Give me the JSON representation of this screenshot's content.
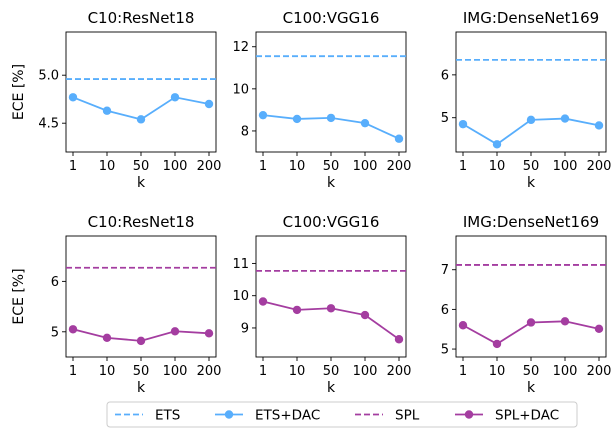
{
  "chart_data": [
    {
      "type": "line",
      "title": "C10:ResNet18",
      "xlabel": "k",
      "ylabel": "ECE [%]",
      "categories": [
        "1",
        "10",
        "50",
        "100",
        "200"
      ],
      "ylim": [
        4.2,
        5.45
      ],
      "yticks": [
        4.5,
        5.0
      ],
      "yticklabels": [
        "4.5",
        "5.0"
      ],
      "baseline": {
        "name": "ETS",
        "value": 4.96,
        "color": "#58aefc"
      },
      "series": [
        {
          "name": "ETS+DAC",
          "values": [
            4.77,
            4.63,
            4.54,
            4.77,
            4.7
          ],
          "color": "#58aefc"
        }
      ]
    },
    {
      "type": "line",
      "title": "C100:VGG16",
      "xlabel": "k",
      "ylabel": "",
      "categories": [
        "1",
        "10",
        "50",
        "100",
        "200"
      ],
      "ylim": [
        7.0,
        12.7
      ],
      "yticks": [
        8,
        10,
        12
      ],
      "yticklabels": [
        "8",
        "10",
        "12"
      ],
      "baseline": {
        "name": "ETS",
        "value": 11.55,
        "color": "#58aefc"
      },
      "series": [
        {
          "name": "ETS+DAC",
          "values": [
            8.75,
            8.57,
            8.62,
            8.37,
            7.63
          ],
          "color": "#58aefc"
        }
      ]
    },
    {
      "type": "line",
      "title": "IMG:DenseNet169",
      "xlabel": "k",
      "ylabel": "",
      "categories": [
        "1",
        "10",
        "50",
        "100",
        "200"
      ],
      "ylim": [
        4.2,
        7.0
      ],
      "yticks": [
        5,
        6
      ],
      "yticklabels": [
        "5",
        "6"
      ],
      "baseline": {
        "name": "ETS",
        "value": 6.35,
        "color": "#58aefc"
      },
      "series": [
        {
          "name": "ETS+DAC",
          "values": [
            4.85,
            4.38,
            4.95,
            4.98,
            4.82
          ],
          "color": "#58aefc"
        }
      ]
    },
    {
      "type": "line",
      "title": "C10:ResNet18",
      "xlabel": "k",
      "ylabel": "ECE [%]",
      "categories": [
        "1",
        "10",
        "50",
        "100",
        "200"
      ],
      "ylim": [
        4.5,
        6.9
      ],
      "yticks": [
        5,
        6
      ],
      "yticklabels": [
        "5",
        "6"
      ],
      "baseline": {
        "name": "SPL",
        "value": 6.27,
        "color": "#a43da0"
      },
      "series": [
        {
          "name": "SPL+DAC",
          "values": [
            5.05,
            4.88,
            4.82,
            5.01,
            4.97
          ],
          "color": "#a43da0"
        }
      ]
    },
    {
      "type": "line",
      "title": "C100:VGG16",
      "xlabel": "k",
      "ylabel": "",
      "categories": [
        "1",
        "10",
        "50",
        "100",
        "200"
      ],
      "ylim": [
        8.1,
        11.85
      ],
      "yticks": [
        9,
        10,
        11
      ],
      "yticklabels": [
        "9",
        "10",
        "11"
      ],
      "baseline": {
        "name": "SPL",
        "value": 10.77,
        "color": "#a43da0"
      },
      "series": [
        {
          "name": "SPL+DAC",
          "values": [
            9.82,
            9.56,
            9.61,
            9.4,
            8.65
          ],
          "color": "#a43da0"
        }
      ]
    },
    {
      "type": "line",
      "title": "IMG:DenseNet169",
      "xlabel": "k",
      "ylabel": "",
      "categories": [
        "1",
        "10",
        "50",
        "100",
        "200"
      ],
      "ylim": [
        4.8,
        7.85
      ],
      "yticks": [
        5,
        6,
        7
      ],
      "yticklabels": [
        "5",
        "6",
        "7"
      ],
      "baseline": {
        "name": "SPL",
        "value": 7.12,
        "color": "#a43da0"
      },
      "series": [
        {
          "name": "SPL+DAC",
          "values": [
            5.6,
            5.13,
            5.67,
            5.7,
            5.51
          ],
          "color": "#a43da0"
        }
      ]
    }
  ],
  "legend": {
    "placement": "bottom-center",
    "entries": [
      {
        "label": "ETS",
        "style": "dashed",
        "color": "#58aefc"
      },
      {
        "label": "ETS+DAC",
        "style": "line-marker",
        "color": "#58aefc"
      },
      {
        "label": "SPL",
        "style": "dashed",
        "color": "#a43da0"
      },
      {
        "label": "SPL+DAC",
        "style": "line-marker",
        "color": "#a43da0"
      }
    ]
  }
}
